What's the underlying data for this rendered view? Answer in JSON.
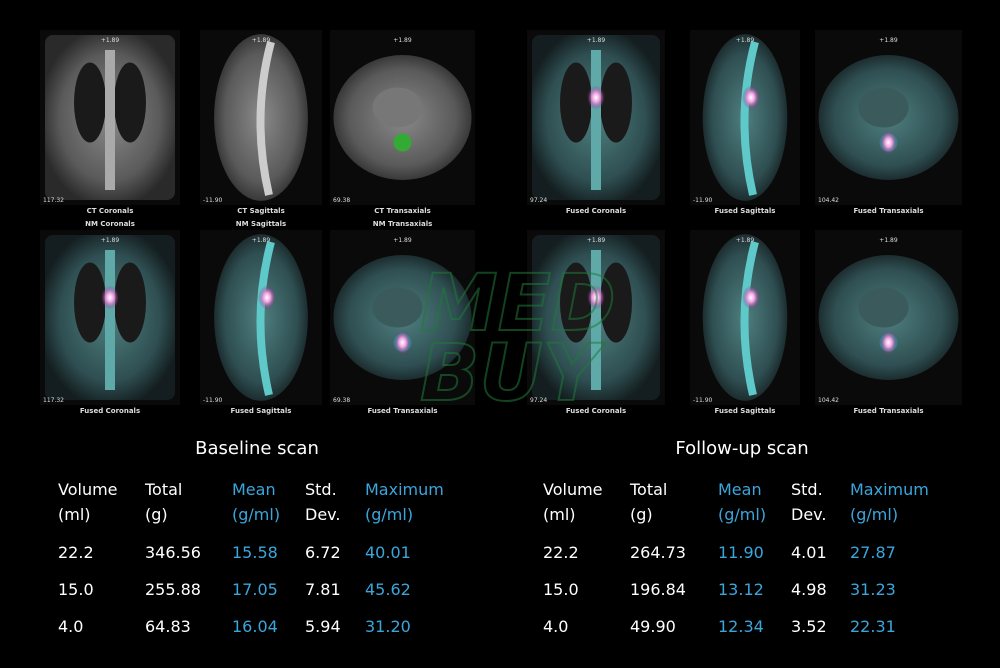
{
  "watermark": [
    "MED",
    "BUY"
  ],
  "panels": [
    {
      "title": "Baseline scan",
      "images": [
        {
          "caption": "CT Coronals",
          "sublabel": "NM Coronals",
          "top": "+1.89",
          "corner": "117.32"
        },
        {
          "caption": "CT Sagittals",
          "sublabel": "NM Sagittals",
          "top": "+1.89",
          "corner": "-11.90"
        },
        {
          "caption": "CT Transaxials",
          "sublabel": "NM Transaxials",
          "top": "+1.89",
          "corner": "69.38"
        },
        {
          "caption": "Fused Coronals",
          "top": "+1.89",
          "corner": "117.32"
        },
        {
          "caption": "Fused Sagittals",
          "top": "+1.89",
          "corner": "-11.90"
        },
        {
          "caption": "Fused Transaxials",
          "top": "+1.89",
          "corner": "69.38"
        }
      ],
      "table": {
        "headers": [
          [
            "Volume",
            "(ml)"
          ],
          [
            "Total",
            "(g)"
          ],
          [
            "Mean",
            "(g/ml)"
          ],
          [
            "Std.",
            "Dev."
          ],
          [
            "Maximum",
            "(g/ml)"
          ]
        ],
        "rows": [
          [
            "22.2",
            "346.56",
            "15.58",
            "6.72",
            "40.01"
          ],
          [
            "15.0",
            "255.88",
            "17.05",
            "7.81",
            "45.62"
          ],
          [
            "4.0",
            "64.83",
            "16.04",
            "5.94",
            "31.20"
          ]
        ]
      }
    },
    {
      "title": "Follow-up scan",
      "images": [
        {
          "caption": "Fused Coronals",
          "top": "+1.89",
          "corner": "97.24"
        },
        {
          "caption": "Fused Sagittals",
          "top": "+1.89",
          "corner": "-11.90"
        },
        {
          "caption": "Fused Transaxials",
          "top": "+1.89",
          "corner": "104.42"
        },
        {
          "caption": "Fused Coronals",
          "top": "+1.89",
          "corner": "97.24"
        },
        {
          "caption": "Fused Sagittals",
          "top": "+1.89",
          "corner": "-11.90"
        },
        {
          "caption": "Fused Transaxials",
          "top": "+1.89",
          "corner": "104.42"
        }
      ],
      "table": {
        "headers": [
          [
            "Volume",
            "(ml)"
          ],
          [
            "Total",
            "(g)"
          ],
          [
            "Mean",
            "(g/ml)"
          ],
          [
            "Std.",
            "Dev."
          ],
          [
            "Maximum",
            "(g/ml)"
          ]
        ],
        "rows": [
          [
            "22.2",
            "264.73",
            "11.90",
            "4.01",
            "27.87"
          ],
          [
            "15.0",
            "196.84",
            "13.12",
            "4.98",
            "31.23"
          ],
          [
            "4.0",
            "49.90",
            "12.34",
            "3.52",
            "22.31"
          ]
        ]
      }
    }
  ]
}
